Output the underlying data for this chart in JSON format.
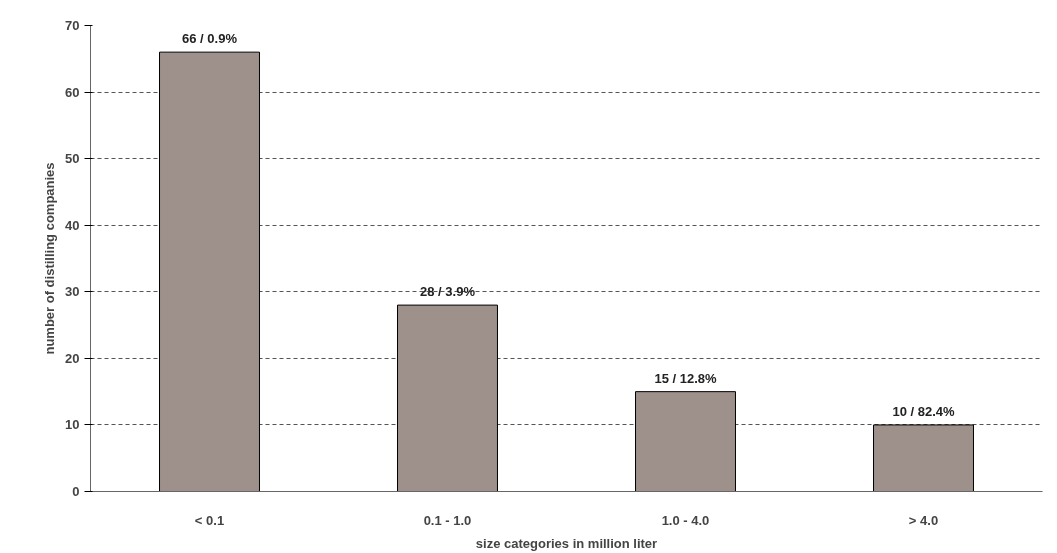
{
  "chart_data": {
    "type": "bar",
    "xlabel": "size categories in million liter",
    "ylabel": "number of distilling companies",
    "categories": [
      "< 0.1",
      "0.1 - 1.0",
      "1.0 - 4.0",
      "> 4.0"
    ],
    "values": [
      66,
      28,
      15,
      10
    ],
    "value_labels": [
      "66 / 0.9%",
      "28 / 3.9%",
      "15 / 12.8%",
      "10 / 82.4%"
    ],
    "color": "#9e918c",
    "ylim": [
      0,
      70
    ],
    "yticks": [
      0,
      10,
      20,
      30,
      40,
      50,
      60,
      70
    ],
    "grid": "y"
  }
}
